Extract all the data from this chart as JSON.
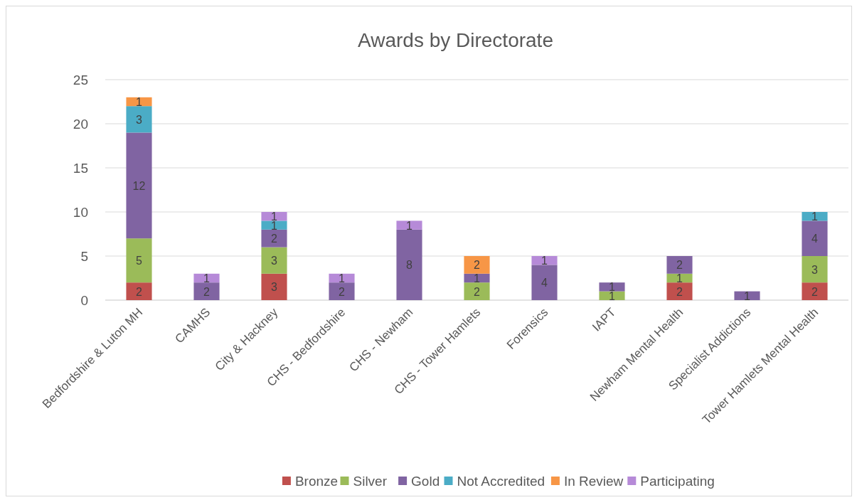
{
  "chart_data": {
    "type": "bar",
    "title": "Awards by Directorate",
    "stacked": true,
    "grid": "y",
    "legend": "bottom",
    "data_labels": true,
    "categories": [
      "Bedfordshire & Luton MH",
      "CAMHS",
      "City & Hackney",
      "CHS - Bedfordshire",
      "CHS - Newham",
      "CHS - Tower Hamlets",
      "Forensics",
      "IAPT",
      "Newham Mental Health",
      "Specialist Addictions",
      "Tower Hamlets Mental Health"
    ],
    "ylim": [
      0,
      25
    ],
    "yticks": [
      0,
      5,
      10,
      15,
      20,
      25
    ],
    "series": [
      {
        "name": "Bronze",
        "color": "#c0504d",
        "values": [
          2,
          null,
          3,
          null,
          null,
          null,
          null,
          null,
          2,
          null,
          2
        ]
      },
      {
        "name": "Silver",
        "color": "#9bbb59",
        "values": [
          5,
          null,
          3,
          null,
          null,
          2,
          null,
          1,
          1,
          null,
          3
        ]
      },
      {
        "name": "Gold",
        "color": "#8064a2",
        "values": [
          12,
          2,
          2,
          2,
          8,
          1,
          4,
          1,
          2,
          1,
          4
        ]
      },
      {
        "name": "Not Accredited",
        "color": "#4bacc6",
        "values": [
          3,
          null,
          1,
          null,
          null,
          null,
          null,
          null,
          null,
          null,
          1
        ]
      },
      {
        "name": "In Review",
        "color": "#f79646",
        "values": [
          1,
          null,
          null,
          null,
          null,
          2,
          null,
          null,
          null,
          null,
          null
        ]
      },
      {
        "name": "Participating",
        "color": "#b68ad8",
        "values": [
          null,
          1,
          1,
          1,
          1,
          null,
          1,
          null,
          null,
          null,
          null
        ]
      }
    ]
  }
}
